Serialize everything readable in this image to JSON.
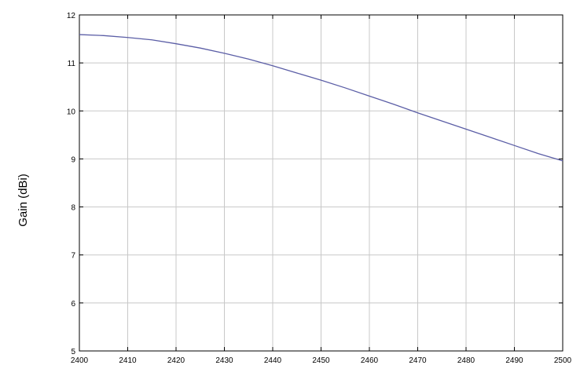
{
  "chart_data": {
    "type": "line",
    "title": "",
    "xlabel": "",
    "ylabel": "Gain (dBi)",
    "xlim": [
      2400,
      2500
    ],
    "ylim": [
      5,
      12
    ],
    "grid": true,
    "x_ticks": [
      2400,
      2410,
      2420,
      2430,
      2440,
      2450,
      2460,
      2470,
      2480,
      2490,
      2500
    ],
    "y_ticks": [
      5,
      6,
      7,
      8,
      9,
      10,
      11,
      12
    ],
    "x_tick_labels": [
      "2400",
      "2410",
      "2420",
      "2430",
      "2440",
      "2450",
      "2460",
      "2470",
      "2480",
      "2490",
      "2500"
    ],
    "y_tick_labels": [
      "5",
      "6",
      "7",
      "8",
      "9",
      "10",
      "11",
      "12"
    ],
    "series": [
      {
        "color": "#5b5ea6",
        "x": [
          2400,
          2405,
          2410,
          2415,
          2420,
          2425,
          2430,
          2435,
          2440,
          2445,
          2450,
          2455,
          2460,
          2465,
          2470,
          2475,
          2480,
          2485,
          2490,
          2495,
          2500
        ],
        "y": [
          11.59,
          11.57,
          11.53,
          11.48,
          11.4,
          11.31,
          11.2,
          11.08,
          10.94,
          10.79,
          10.64,
          10.48,
          10.31,
          10.14,
          9.96,
          9.79,
          9.62,
          9.45,
          9.28,
          9.11,
          8.96
        ]
      }
    ]
  }
}
